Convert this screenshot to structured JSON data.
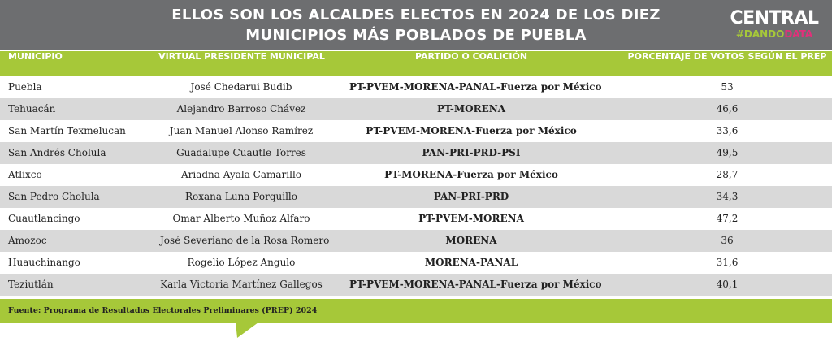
{
  "header": {
    "title_lines": [
      "ELLOS SON LOS ALCALDES ELECTOS EN 2024 DE LOS DIEZ",
      "MUNICIPIOS MÁS POBLADOS DE PUEBLA"
    ]
  },
  "logo": {
    "name": "CENTRAL",
    "tag": "#DANDO",
    "tag_accent": "DATA"
  },
  "table": {
    "columns": [
      "MUNICIPIO",
      "VIRTUAL PRESIDENTE MUNICIPAL",
      "PARTIDO O COALICIÓN",
      "PORCENTAJE DE VOTOS SEGÚN EL PREP"
    ],
    "rows": [
      [
        "Puebla",
        "José Chedarui Budib",
        "PT-PVEM-MORENA-PANAL-Fuerza por México",
        "53"
      ],
      [
        "Tehuacán",
        "Alejandro Barroso Chávez",
        "PT-MORENA",
        "46,6"
      ],
      [
        "San Martín Texmelucan",
        "Juan Manuel Alonso Ramírez",
        "PT-PVEM-MORENA-Fuerza por México",
        "33,6"
      ],
      [
        "San Andrés Cholula",
        "Guadalupe Cuautle Torres",
        "PAN-PRI-PRD-PSI",
        "49,5"
      ],
      [
        "Atlixco",
        "Ariadna Ayala Camarillo",
        "PT-MORENA-Fuerza por México",
        "28,7"
      ],
      [
        "San Pedro Cholula",
        "Roxana Luna Porquillo",
        "PAN-PRI-PRD",
        "34,3"
      ],
      [
        "Cuautlancingo",
        "Omar Alberto Muñoz Alfaro",
        "PT-PVEM-MORENA",
        "47,2"
      ],
      [
        "Amozoc",
        "José Severiano de la Rosa Romero",
        "MORENA",
        "36"
      ],
      [
        "Huauchinango",
        "Rogelio López Angulo",
        "MORENA-PANAL",
        "31,6"
      ],
      [
        "Teziutlán",
        "Karla Victoria Martínez Gallegos",
        "PT-PVEM-MORENA-PANAL-Fuerza por México",
        "40,1"
      ]
    ]
  },
  "footer": {
    "source": "Fuente: Programa de Resultados Electorales Preliminares (PREP) 2024"
  }
}
